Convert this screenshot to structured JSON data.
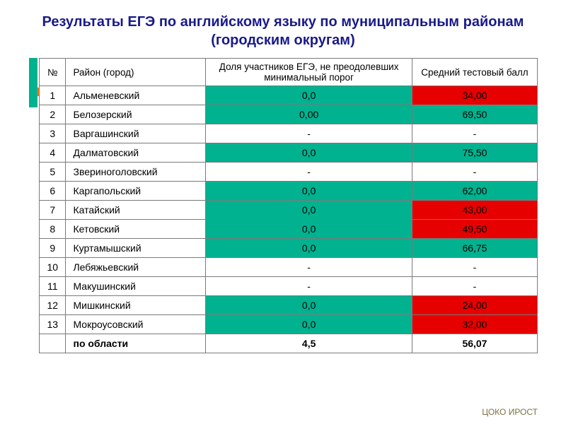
{
  "title": "Результаты ЕГЭ по английскому языку по муниципальным районам (городским округам)",
  "title_color": "#1a1a8a",
  "accent_vertical_color": "#00b28f",
  "accent_horizontal_color": "#f07a1a",
  "colors": {
    "green": "#00b28f",
    "red": "#e60000",
    "white": "#ffffff",
    "border": "#7a7a7a"
  },
  "columns": {
    "num": "№",
    "district": "Район (город)",
    "share": "Доля участников ЕГЭ, не преодолевших минимальный порог",
    "score": "Средний тестовый балл"
  },
  "rows": [
    {
      "n": "1",
      "district": "Альменевский",
      "share": "0,0",
      "share_bg": "green",
      "score": "34,00",
      "score_bg": "red"
    },
    {
      "n": "2",
      "district": "Белозерский",
      "share": "0,00",
      "share_bg": "green",
      "score": "69,50",
      "score_bg": "green"
    },
    {
      "n": "3",
      "district": "Варгашинский",
      "share": "-",
      "share_bg": "white",
      "score": "-",
      "score_bg": "white"
    },
    {
      "n": "4",
      "district": "Далматовский",
      "share": "0,0",
      "share_bg": "green",
      "score": "75,50",
      "score_bg": "green"
    },
    {
      "n": "5",
      "district": "Звериноголовский",
      "share": "-",
      "share_bg": "white",
      "score": "-",
      "score_bg": "white"
    },
    {
      "n": "6",
      "district": "Каргапольский",
      "share": "0,0",
      "share_bg": "green",
      "score": "62,00",
      "score_bg": "green"
    },
    {
      "n": "7",
      "district": "Катайский",
      "share": "0,0",
      "share_bg": "green",
      "score": "43,00",
      "score_bg": "red"
    },
    {
      "n": "8",
      "district": "Кетовский",
      "share": "0,0",
      "share_bg": "green",
      "score": "49,50",
      "score_bg": "red"
    },
    {
      "n": "9",
      "district": "Куртамышский",
      "share": "0,0",
      "share_bg": "green",
      "score": "66,75",
      "score_bg": "green"
    },
    {
      "n": "10",
      "district": "Лебяжьевский",
      "share": "-",
      "share_bg": "white",
      "score": "-",
      "score_bg": "white"
    },
    {
      "n": "11",
      "district": "Макушинский",
      "share": "-",
      "share_bg": "white",
      "score": "-",
      "score_bg": "white"
    },
    {
      "n": "12",
      "district": "Мишкинский",
      "share": "0,0",
      "share_bg": "green",
      "score": "24,00",
      "score_bg": "red"
    },
    {
      "n": "13",
      "district": "Мокроусовский",
      "share": "0,0",
      "share_bg": "green",
      "score": "32,00",
      "score_bg": "red"
    }
  ],
  "summary": {
    "label": "по области",
    "share": "4,5",
    "score": "56,07"
  },
  "footer": "ЦОКО ИРОСТ",
  "footer_color": "#807040"
}
